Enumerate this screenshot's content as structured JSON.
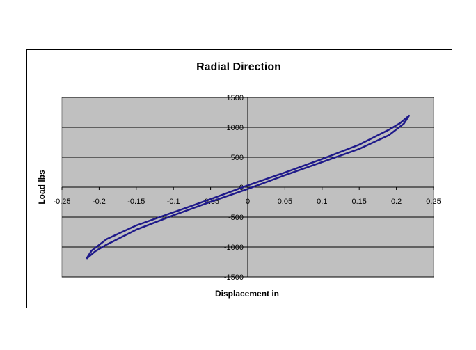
{
  "chart_data": {
    "type": "line",
    "title": "Radial Direction",
    "xlabel": "Displacement  in",
    "ylabel": "Load  lbs",
    "xlim": [
      -0.25,
      0.25
    ],
    "ylim": [
      -1500,
      1500
    ],
    "x_ticks": [
      "-0.25",
      "-0.2",
      "-0.15",
      "-0.1",
      "-0.05",
      "0",
      "0.05",
      "0.1",
      "0.15",
      "0.2",
      "0.25"
    ],
    "y_ticks": [
      "1500",
      "1000",
      "500",
      "0",
      "-500",
      "-1000",
      "-1500"
    ],
    "grid": "horizontal",
    "plot_background": "#c0c0c0",
    "series": [
      {
        "color": "#1f1a8a",
        "x": [
          -0.217,
          -0.21,
          -0.19,
          -0.15,
          -0.1,
          -0.05,
          0,
          0.05,
          0.1,
          0.15,
          0.19,
          0.205,
          0.217,
          0.21,
          0.19,
          0.15,
          0.1,
          0.05,
          0,
          -0.05,
          -0.1,
          -0.15,
          -0.19,
          -0.205,
          -0.217
        ],
        "y": [
          -1195,
          -1060,
          -870,
          -640,
          -420,
          -200,
          30,
          245,
          470,
          710,
          960,
          1070,
          1195,
          1060,
          870,
          640,
          420,
          200,
          -30,
          -245,
          -470,
          -710,
          -960,
          -1070,
          -1195
        ]
      }
    ]
  }
}
